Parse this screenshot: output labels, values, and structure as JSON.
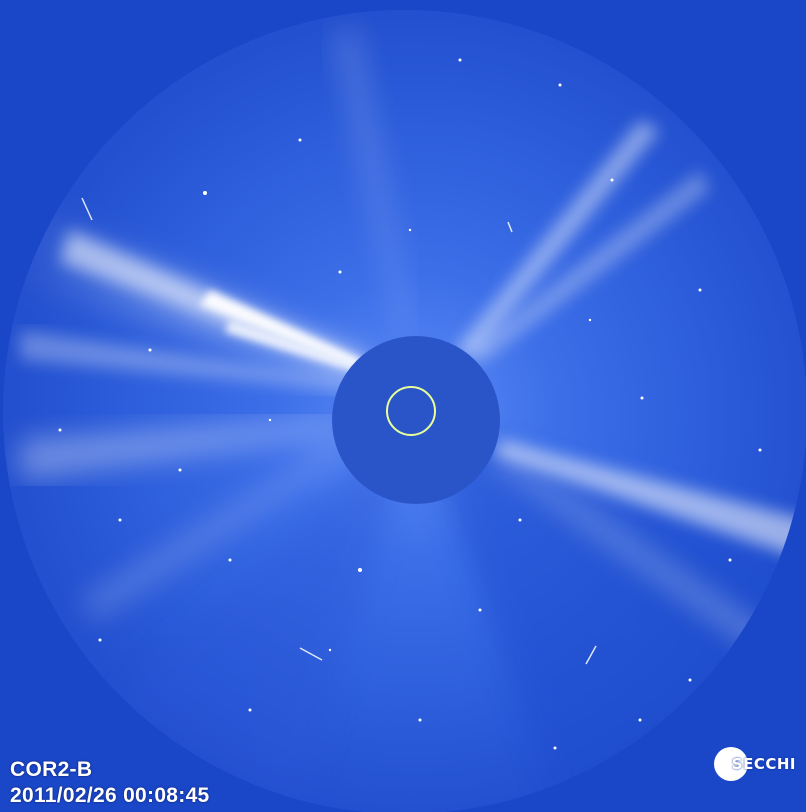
{
  "image": {
    "instrument_label": "COR2-B",
    "timestamp_label": "2011/02/26 00:08:45",
    "logo_text": "SECCHI",
    "logo_icon": "secchi-sun-disc-icon",
    "colors": {
      "sky": "#1a46c8",
      "field": "#2f63e6",
      "occulter": "#2a55c9",
      "sun_outline": "#e8ff9a",
      "streamer": "#ffffff"
    }
  }
}
